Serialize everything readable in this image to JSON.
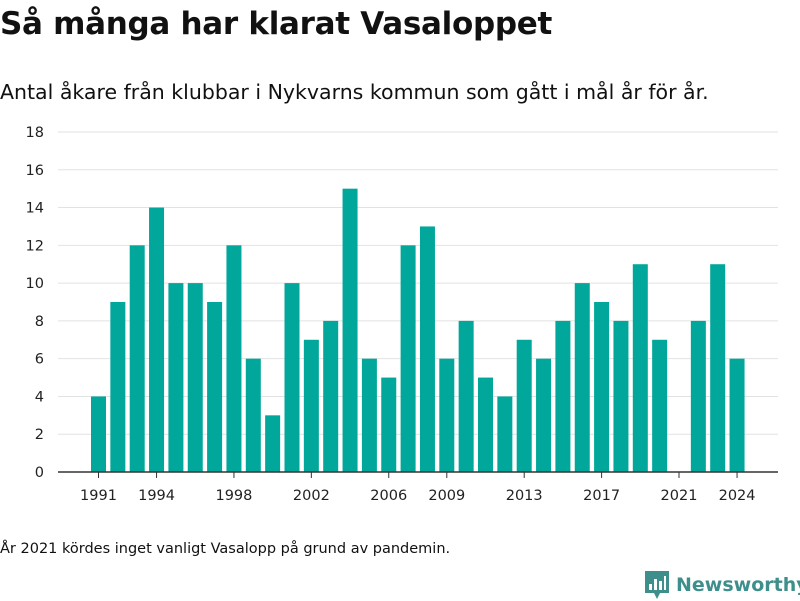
{
  "title": "Så många har klarat Vasaloppet",
  "subtitle": "Antal åkare från klubbar i Nykvarns kommun som gått i mål år för år.",
  "note": "År 2021 kördes inget vanligt Vasalopp på grund av pandemin.",
  "brand": "Newsworthy",
  "colors": {
    "bar": "#00a79a",
    "grid": "#e2e2e2",
    "axis": "#333333",
    "brand": "#3e8f8b"
  },
  "chart_data": {
    "type": "bar",
    "title": "Så många har klarat Vasaloppet",
    "subtitle": "Antal åkare från klubbar i Nykvarns kommun som gått i mål år för år.",
    "xlabel": "",
    "ylabel": "",
    "categories": [
      1991,
      1992,
      1993,
      1994,
      1995,
      1996,
      1997,
      1998,
      1999,
      2000,
      2001,
      2002,
      2003,
      2004,
      2005,
      2006,
      2007,
      2008,
      2009,
      2010,
      2011,
      2012,
      2013,
      2014,
      2015,
      2016,
      2017,
      2018,
      2019,
      2020,
      2021,
      2022,
      2023,
      2024
    ],
    "values": [
      4,
      9,
      12,
      14,
      10,
      10,
      9,
      12,
      6,
      3,
      10,
      7,
      8,
      15,
      6,
      5,
      12,
      13,
      6,
      8,
      5,
      4,
      7,
      6,
      8,
      10,
      9,
      8,
      11,
      7,
      null,
      8,
      11,
      6
    ],
    "x_tick_labels": [
      "1991",
      "1994",
      "1998",
      "2002",
      "2006",
      "2009",
      "2013",
      "2017",
      "2021",
      "2024"
    ],
    "y_tick_labels": [
      "0",
      "2",
      "4",
      "6",
      "8",
      "10",
      "12",
      "14",
      "16",
      "18"
    ],
    "ylim": [
      0,
      18
    ],
    "grid": true,
    "legend": "none"
  }
}
